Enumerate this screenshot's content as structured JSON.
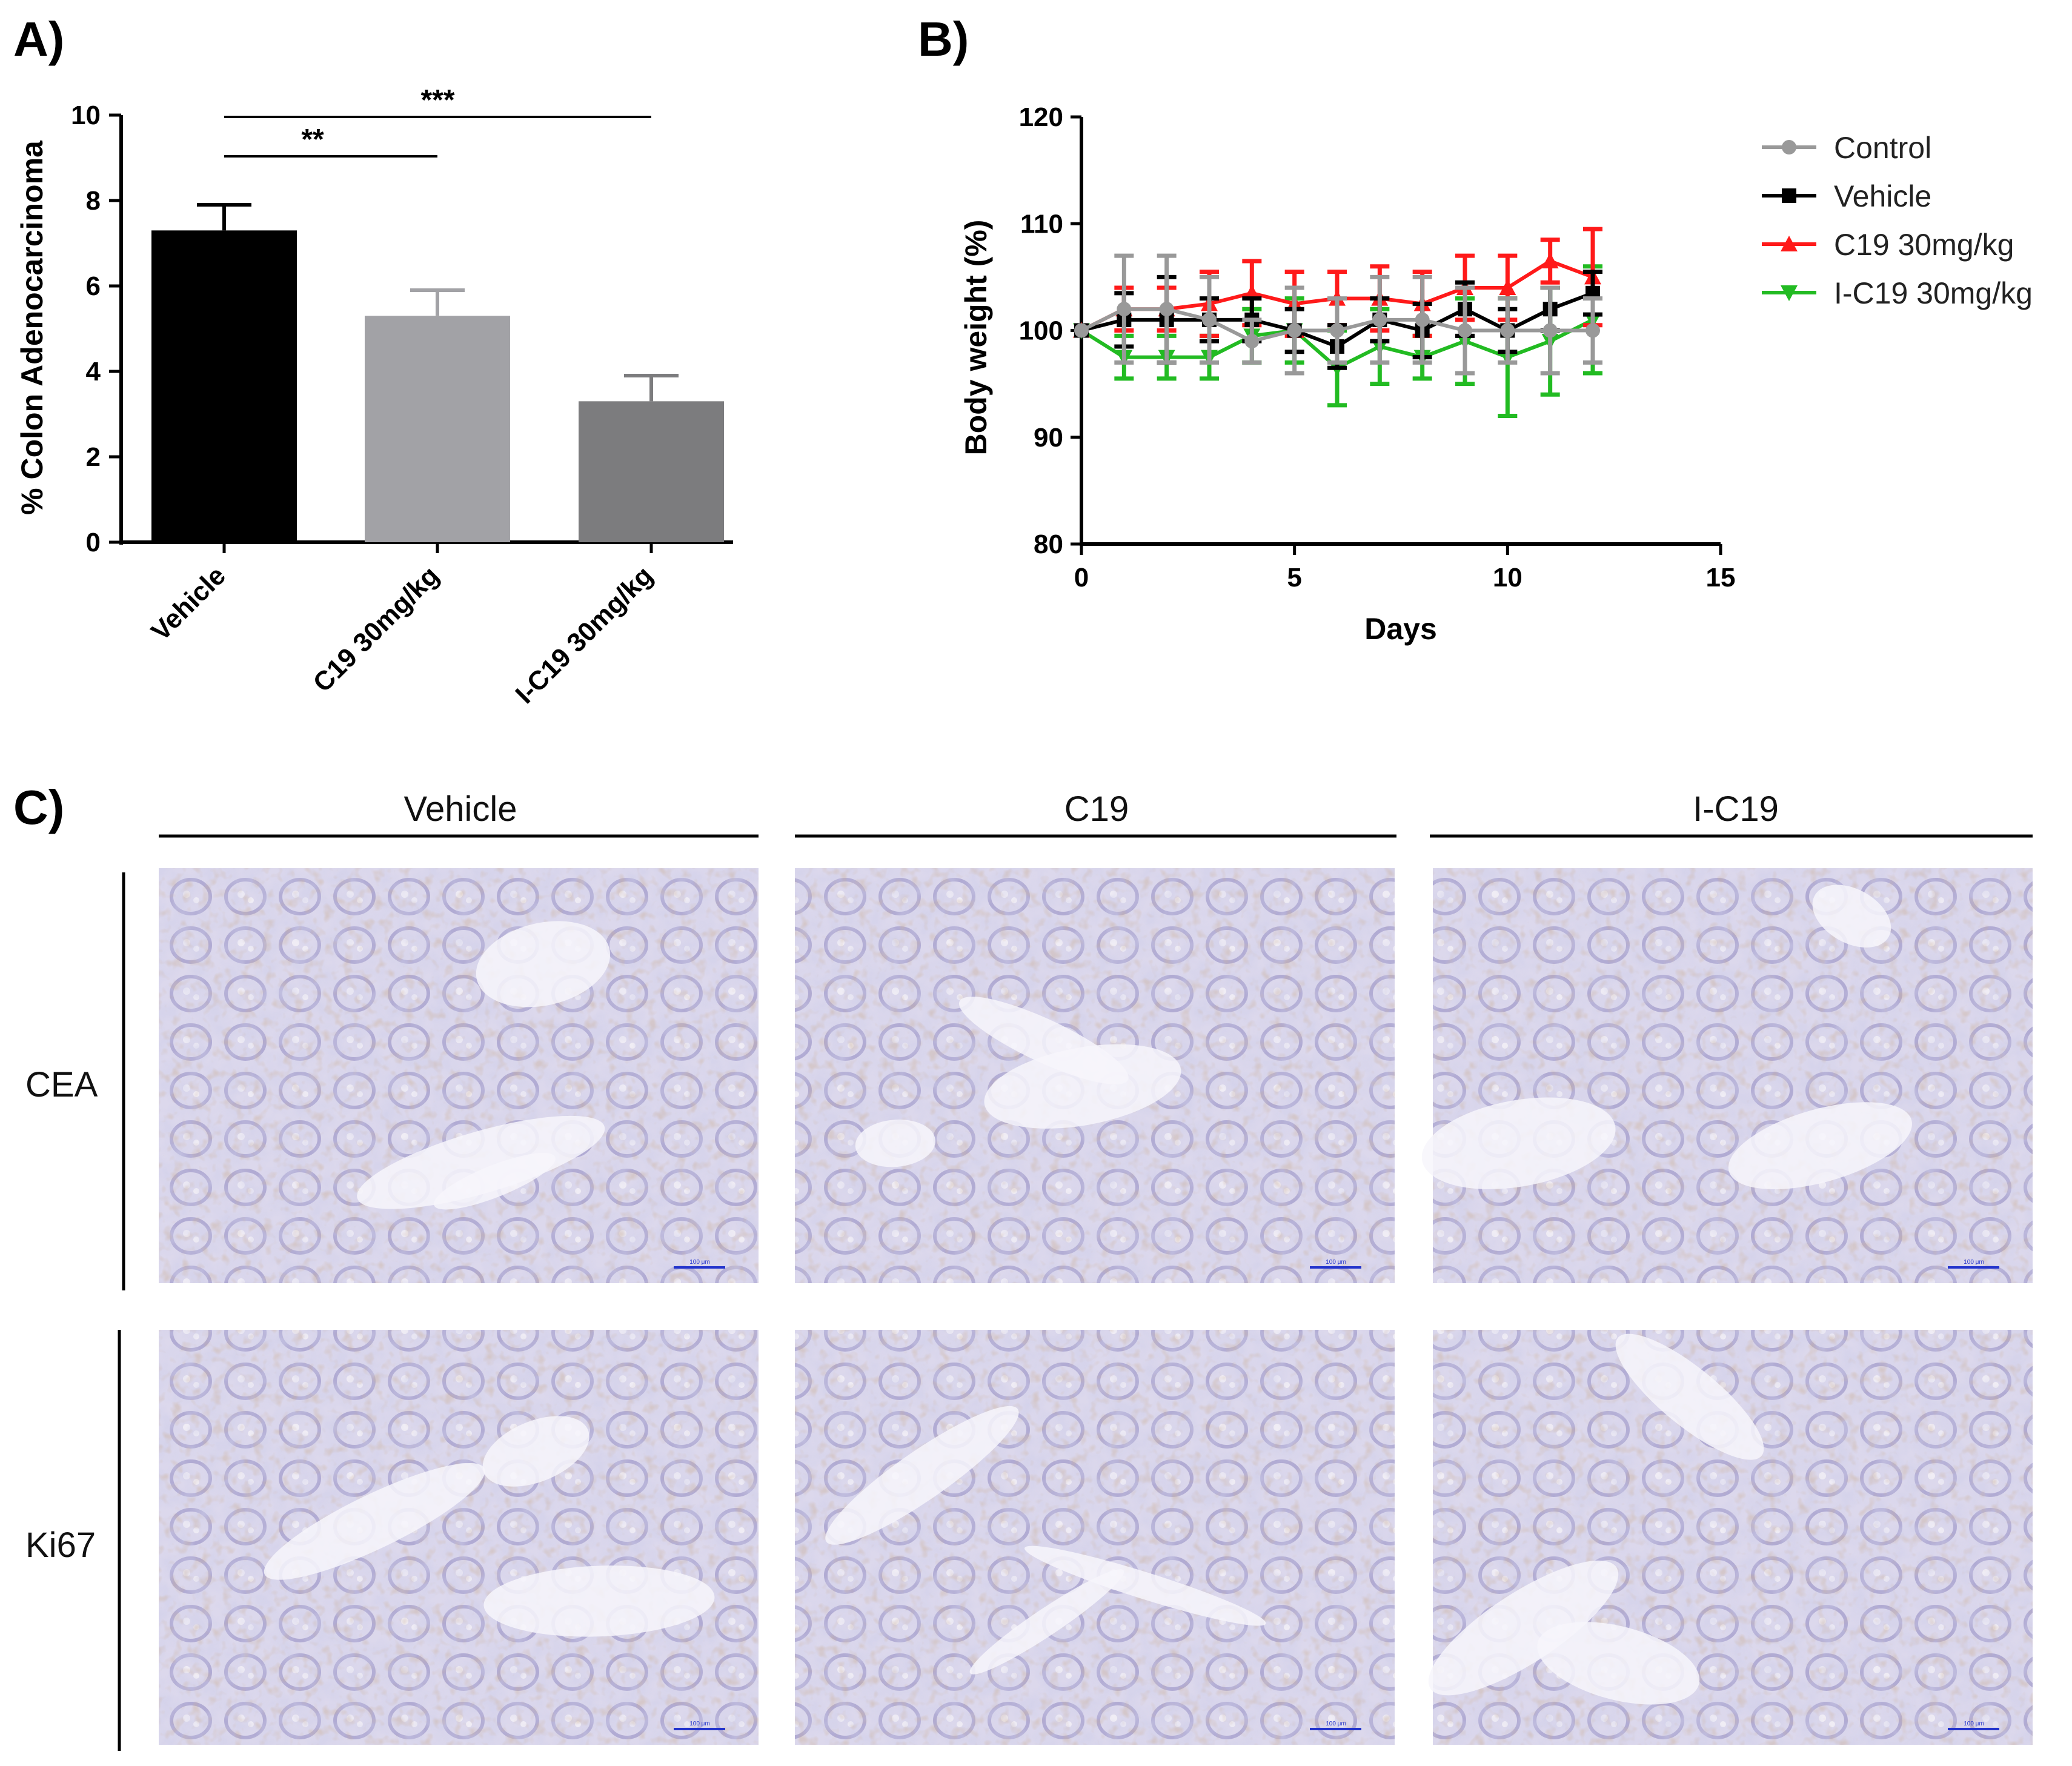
{
  "panels": {
    "a": "A)",
    "b": "B)",
    "c": "C)"
  },
  "chart_data": [
    {
      "type": "bar",
      "panel": "A)",
      "categories": [
        "Vehicle",
        "C19 30mg/kg",
        "I-C19 30mg/kg"
      ],
      "values": [
        7.3,
        5.3,
        3.3
      ],
      "errors": [
        0.6,
        0.6,
        0.6
      ],
      "colors": [
        "#000000",
        "#a2a2a6",
        "#7c7c7e"
      ],
      "ylabel": "% Colon Adenocarcinoma",
      "ylim": [
        0,
        10
      ],
      "yticks": [
        "0",
        "2",
        "4",
        "6",
        "8",
        "10"
      ],
      "significance": [
        {
          "from": "Vehicle",
          "to": "C19 30mg/kg",
          "label": "**"
        },
        {
          "from": "Vehicle",
          "to": "I-C19 30mg/kg",
          "label": "***"
        }
      ],
      "grid": false
    },
    {
      "type": "line",
      "panel": "B)",
      "xlabel": "Days",
      "ylabel": "Body weight (%)",
      "xlim": [
        0,
        15
      ],
      "ylim": [
        80,
        120
      ],
      "xticks": [
        "0",
        "5",
        "10",
        "15"
      ],
      "yticks": [
        "80",
        "90",
        "100",
        "110",
        "120"
      ],
      "x": [
        0,
        1,
        2,
        3,
        4,
        5,
        6,
        7,
        8,
        9,
        10,
        11,
        12
      ],
      "legend_position": "top-right",
      "grid": false,
      "series": [
        {
          "name": "Control",
          "color": "#999999",
          "marker": "circle",
          "values": [
            100,
            102,
            102,
            101,
            99,
            100,
            100,
            101,
            101,
            100,
            100,
            100,
            100
          ],
          "errors": [
            0,
            5,
            5,
            4,
            2,
            4,
            3,
            4,
            4,
            4,
            3,
            4,
            3
          ]
        },
        {
          "name": "Vehicle",
          "color": "#000000",
          "marker": "square",
          "values": [
            100,
            101,
            101,
            101,
            101,
            100,
            98.5,
            101,
            100,
            102,
            100,
            102,
            103.5
          ],
          "errors": [
            0,
            2.5,
            4,
            2,
            2,
            2,
            2,
            2,
            2.5,
            2.5,
            2,
            2,
            2
          ]
        },
        {
          "name": "C19 30mg/kg",
          "color": "#ff1a1a",
          "marker": "triangle-up",
          "values": [
            100,
            102,
            102,
            102.5,
            103.5,
            102.5,
            103,
            103,
            102.5,
            104,
            104,
            106.5,
            105
          ],
          "errors": [
            0,
            2,
            2,
            3,
            3,
            3,
            2.5,
            3,
            3,
            3,
            3,
            2,
            4.5
          ]
        },
        {
          "name": "I-C19 30mg/kg",
          "color": "#22bb22",
          "marker": "triangle-down",
          "values": [
            100,
            97.5,
            97.5,
            97.5,
            99.5,
            100,
            96.5,
            98.5,
            97.5,
            99,
            97.5,
            99,
            101
          ],
          "errors": [
            0,
            2,
            2,
            2,
            2.5,
            3,
            3.5,
            3.5,
            2,
            4,
            5.5,
            5,
            5
          ]
        }
      ]
    }
  ],
  "histology": {
    "columns": [
      "Vehicle",
      "C19",
      "I-C19"
    ],
    "rows": [
      "CEA",
      "Ki67"
    ],
    "scale_bar_label": "100 μm"
  }
}
